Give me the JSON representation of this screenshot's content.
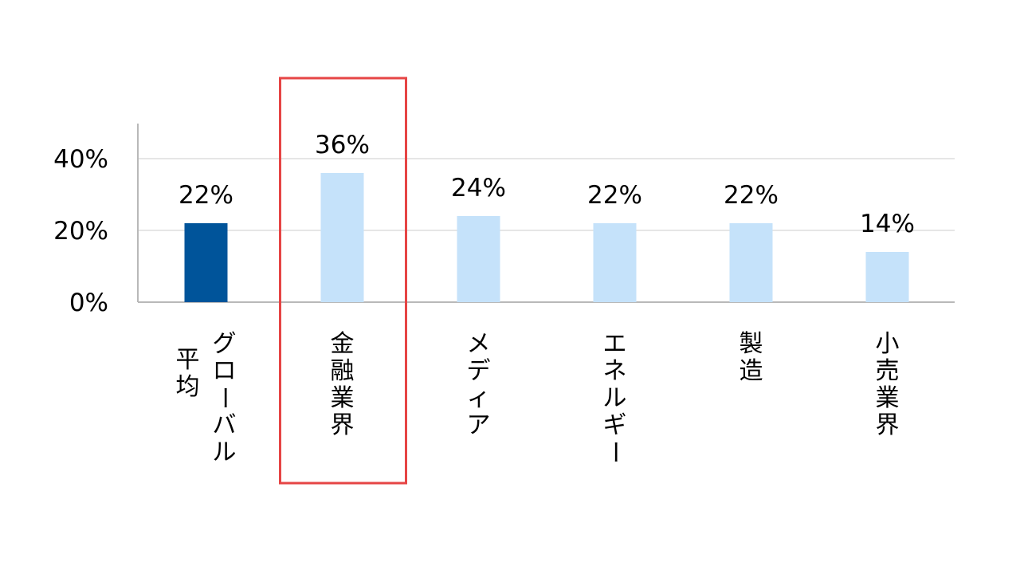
{
  "chart_data": {
    "type": "bar",
    "categories": [
      [
        "グローバル",
        "平均"
      ],
      [
        "金融業界"
      ],
      [
        "メディア"
      ],
      [
        "エネルギー"
      ],
      [
        "製造"
      ],
      [
        "小売業界"
      ]
    ],
    "values": [
      22,
      36,
      24,
      22,
      22,
      14
    ],
    "data_labels": [
      "22%",
      "36%",
      "24%",
      "22%",
      "22%",
      "14%"
    ],
    "y_ticks": [
      {
        "value": 0,
        "label": "0%"
      },
      {
        "value": 20,
        "label": "20%"
      },
      {
        "value": 40,
        "label": "40%"
      }
    ],
    "ylim": [
      0,
      50
    ],
    "grid": true,
    "highlight_index": 1,
    "colors": {
      "emphasis_bar": "#00549a",
      "bar": "#c5e2fa",
      "highlight_box": "#e64545",
      "axis": "#b9b9b9",
      "grid": "#dddddd"
    }
  }
}
